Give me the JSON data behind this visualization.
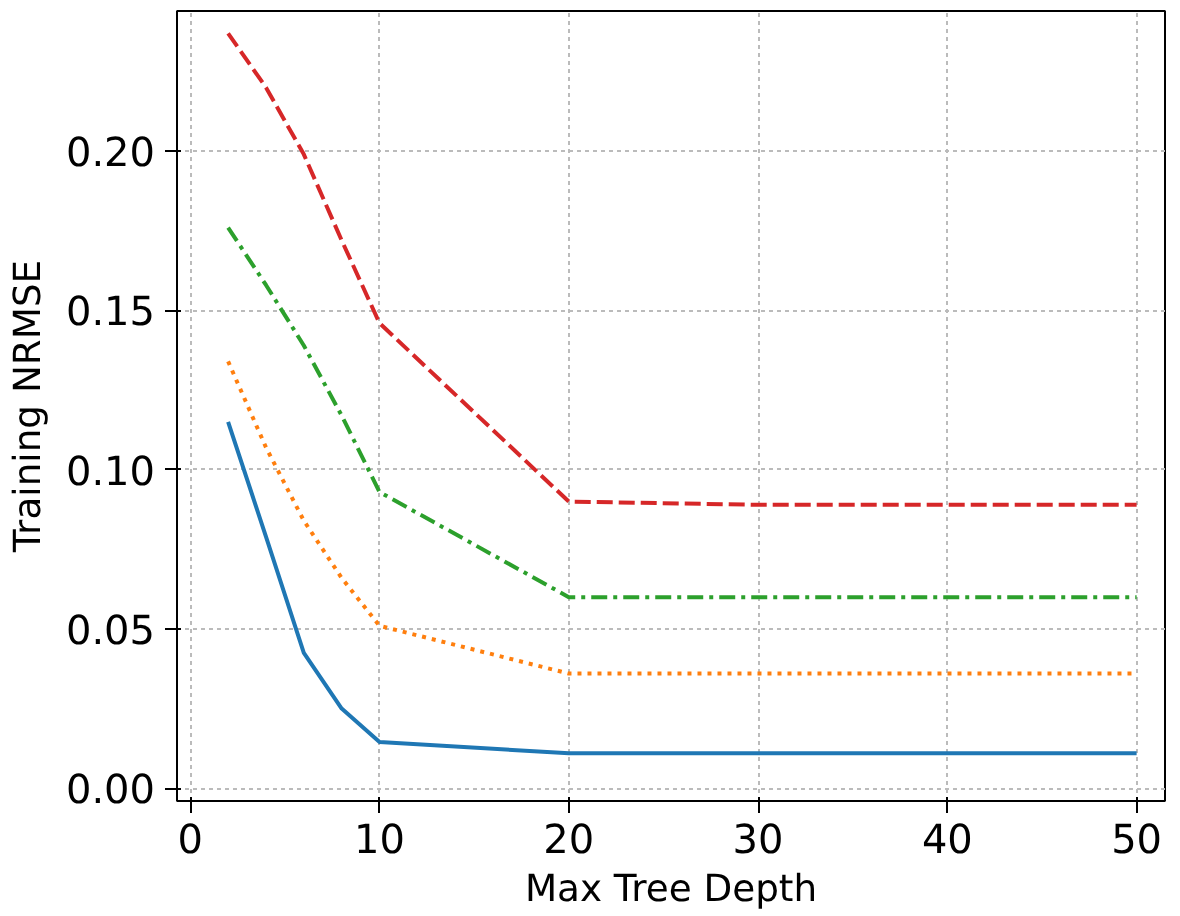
{
  "chart_data": {
    "type": "line",
    "xlabel": "Max Tree Depth",
    "ylabel": "Training NRMSE",
    "x": [
      2,
      4,
      6,
      8,
      10,
      20,
      30,
      40,
      50
    ],
    "series": [
      {
        "color": "#1f77b4",
        "line_style": "solid",
        "values": [
          0.115,
          0.079,
          0.0425,
          0.025,
          0.0145,
          0.011,
          0.011,
          0.011,
          0.011
        ]
      },
      {
        "color": "#ff7f0e",
        "line_style": "dotted",
        "values": [
          0.134,
          0.107,
          0.084,
          0.066,
          0.051,
          0.036,
          0.036,
          0.036,
          0.036
        ]
      },
      {
        "color": "#2ca02c",
        "line_style": "dashdot",
        "values": [
          0.176,
          0.158,
          0.139,
          0.117,
          0.093,
          0.06,
          0.06,
          0.06,
          0.06
        ]
      },
      {
        "color": "#d62728",
        "line_style": "dashed",
        "values": [
          0.237,
          0.22,
          0.199,
          0.172,
          0.146,
          0.09,
          0.089,
          0.089,
          0.089
        ]
      }
    ],
    "xlim": [
      -0.7,
      51.5
    ],
    "ylim": [
      -0.004,
      0.244
    ],
    "xticks": [
      0,
      10,
      20,
      30,
      40,
      50
    ],
    "yticks": [
      {
        "value": 0,
        "label": "0.00"
      },
      {
        "value": 0.05,
        "label": "0.05"
      },
      {
        "value": 0.1,
        "label": "0.10"
      },
      {
        "value": 0.15,
        "label": "0.15"
      },
      {
        "value": 0.2,
        "label": "0.20"
      }
    ],
    "grid": true
  }
}
